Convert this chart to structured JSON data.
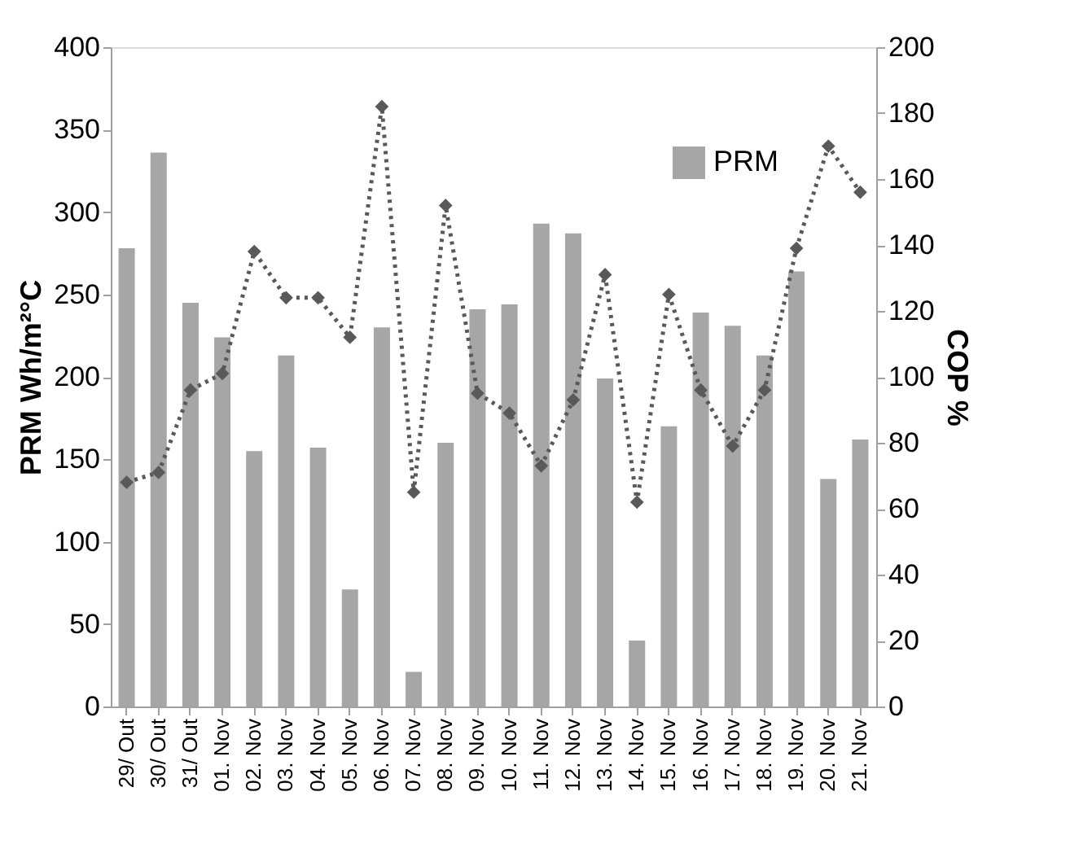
{
  "chart_data": {
    "type": "bar",
    "ylabel": "PRM Wh/m²°C",
    "y2label": "COP %",
    "categories": [
      "29/ Out",
      "30/ Out",
      "31/ Out",
      "01. Nov",
      "02. Nov",
      "03. Nov",
      "04. Nov",
      "05. Nov",
      "06. Nov",
      "07. Nov",
      "08. Nov",
      "09. Nov",
      "10. Nov",
      "11. Nov",
      "12. Nov",
      "13. Nov",
      "14. Nov",
      "15. Nov",
      "16. Nov",
      "17. Nov",
      "18. Nov",
      "19. Nov",
      "20. Nov",
      "21. Nov"
    ],
    "series": [
      {
        "name": "PRM",
        "color": "#a6a6a6",
        "values": [
          278,
          336,
          245,
          224,
          155,
          213,
          157,
          71,
          230,
          21,
          160,
          241,
          244,
          293,
          287,
          199,
          40,
          170,
          239,
          231,
          213,
          264,
          138,
          162
        ]
      },
      {
        "type": "line",
        "axis": "y2",
        "color": "#595959",
        "marker": "diamond",
        "line_style": "dotted",
        "values": [
          68,
          71,
          96,
          101,
          138,
          124,
          124,
          112,
          182,
          65,
          152,
          95,
          89,
          73,
          93,
          131,
          62,
          125,
          96,
          79,
          96,
          139,
          170,
          156
        ]
      }
    ],
    "ylim": [
      0,
      400
    ],
    "yticks": [
      0,
      50,
      100,
      150,
      200,
      250,
      300,
      350,
      400
    ],
    "y2lim": [
      0,
      200
    ],
    "y2ticks": [
      0,
      20,
      40,
      60,
      80,
      100,
      120,
      140,
      160,
      180,
      200
    ],
    "grid": false,
    "legend": "top right"
  }
}
